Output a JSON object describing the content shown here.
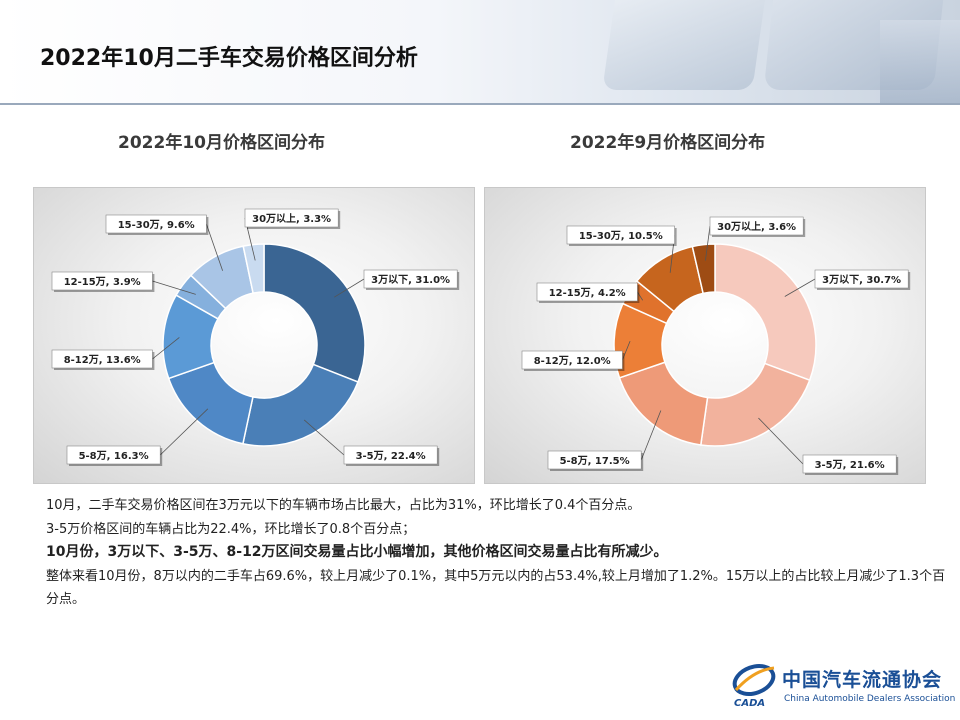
{
  "page": {
    "title": "2022年10月二手车交易价格区间分析"
  },
  "chart_data": [
    {
      "type": "pie",
      "title": "2022年10月价格区间分布",
      "categories": [
        "3万以下",
        "3-5万",
        "5-8万",
        "8-12万",
        "12-15万",
        "15-30万",
        "30万以上"
      ],
      "values": [
        31.0,
        22.4,
        16.3,
        13.6,
        3.9,
        9.6,
        3.3
      ],
      "labels": [
        "3万以下, 31.0%",
        "3-5万, 22.4%",
        "5-8万, 16.3%",
        "8-12万, 13.6%",
        "12-15万, 3.9%",
        "15-30万, 9.6%",
        "30万以上, 3.3%"
      ],
      "colors": [
        "#3a6593",
        "#4a7fb7",
        "#4f88c6",
        "#5b9ad6",
        "#85b0dd",
        "#a9c5e6",
        "#c9dbf0"
      ]
    },
    {
      "type": "pie",
      "title": "2022年9月价格区间分布",
      "categories": [
        "3万以下",
        "3-5万",
        "5-8万",
        "8-12万",
        "12-15万",
        "15-30万",
        "30万以上"
      ],
      "values": [
        30.7,
        21.6,
        17.5,
        12.0,
        4.2,
        10.5,
        3.6
      ],
      "labels": [
        "3万以下, 30.7%",
        "3-5万, 21.6%",
        "5-8万, 17.5%",
        "8-12万, 12.0%",
        "12-15万, 4.2%",
        "15-30万, 10.5%",
        "30万以上, 3.6%"
      ],
      "colors": [
        "#f6c9bd",
        "#f2b29d",
        "#ee9a78",
        "#ec7f37",
        "#e0722c",
        "#c6651e",
        "#9e4c14"
      ]
    }
  ],
  "text": {
    "line1": "10月，二手车交易价格区间在3万元以下的车辆市场占比最大，占比为31%，环比增长了0.4个百分点。",
    "line2": "3-5万价格区间的车辆占比为22.4%，环比增长了0.8个百分点；",
    "line3": "10月份，3万以下、3-5万、8-12万区间交易量占比小幅增加，其他价格区间交易量占比有所减少。",
    "line4": "整体来看10月份，8万以内的二手车占69.6%，较上月减少了0.1%，其中5万元以内的占53.4%,较上月增加了1.2%。15万以上的占比较上月减少了1.3个百分点。"
  },
  "logo": {
    "name_cn": "中国汽车流通协会",
    "name_en": "China Automobile Dealers Association",
    "mark_text": "CADA",
    "colors": {
      "primary": "#1a4f96",
      "accent": "#f0a020"
    }
  }
}
